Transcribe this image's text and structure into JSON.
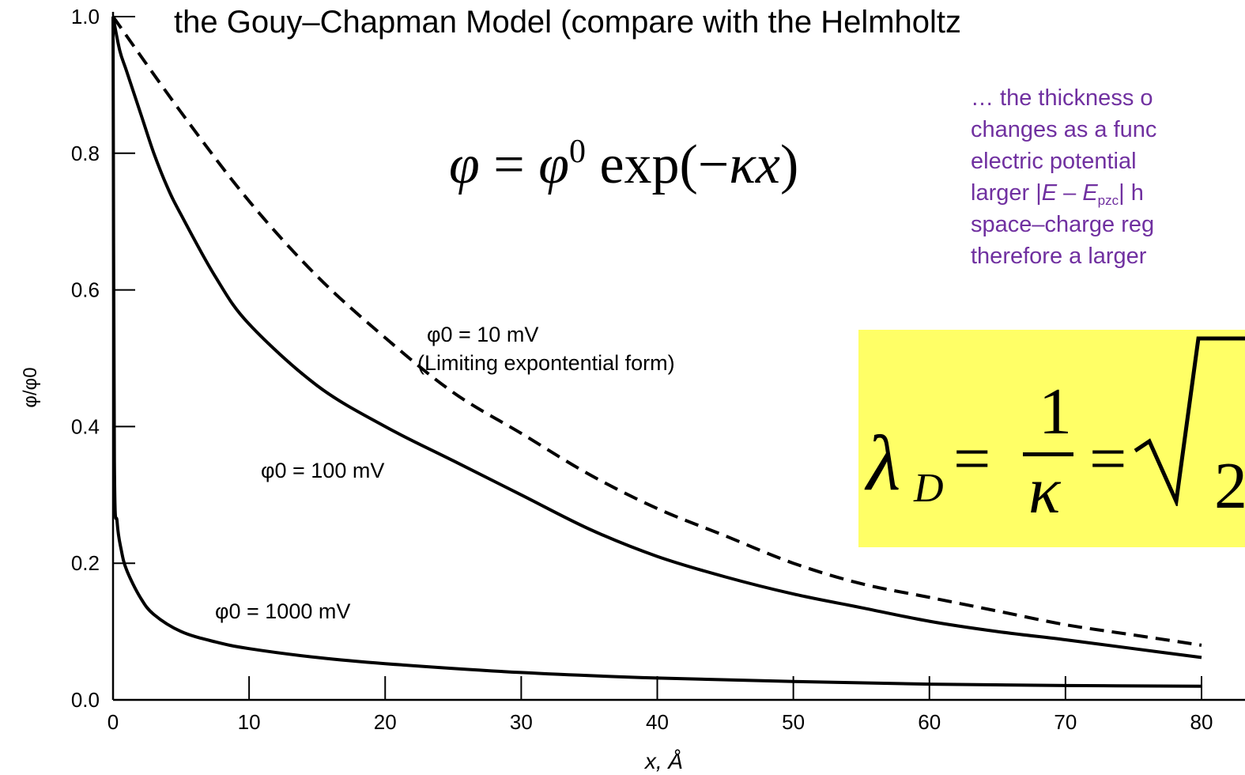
{
  "slide": {
    "title": "the Gouy–Chapman Model (compare with the Helmholtz",
    "equation": {
      "lhs": "φ",
      "equals": "=",
      "base": "φ",
      "superscript": "0",
      "func": "exp(−",
      "kappa": "κ",
      "x": "x",
      "close": ")"
    },
    "note": {
      "line1": "… the thickness o",
      "line2": "changes as a func",
      "line3": "electric potential",
      "line4_pre": "larger |",
      "line4_E": "E",
      "line4_dash": " – ",
      "line4_E2": "E",
      "line4_sub": "pzc",
      "line4_post": "| h",
      "line5": "space–charge reg",
      "line6": "therefore a larger",
      "color": "#7030a0"
    },
    "debye": {
      "lambda": "λ",
      "sub": "D",
      "eq1": "=",
      "numerator": "1",
      "kappa": "κ",
      "eq2": "=",
      "two": "2",
      "background": "#ffff66"
    }
  },
  "chart_data": {
    "type": "line",
    "xlabel": "x, Å",
    "ylabel": "φ/φ0",
    "xlim": [
      0,
      80
    ],
    "ylim": [
      0,
      1.0
    ],
    "xticks": [
      0,
      10,
      20,
      30,
      40,
      50,
      60,
      70,
      80
    ],
    "yticks": [
      0.0,
      0.2,
      0.4,
      0.6,
      0.8,
      1.0
    ],
    "xtick_labels": [
      "0",
      "10",
      "20",
      "30",
      "40",
      "50",
      "60",
      "70",
      "80"
    ],
    "ytick_labels": [
      "0.0",
      "0.2",
      "0.4",
      "0.6",
      "0.8",
      "1.0"
    ],
    "grid": false,
    "series": [
      {
        "label_line1": "φ0 = 10 mV",
        "label_line2": "(Limiting expontential form)",
        "style": "dashed",
        "x": [
          0,
          5,
          10,
          15,
          20,
          25,
          30,
          35,
          40,
          45,
          50,
          55,
          60,
          65,
          70,
          75,
          80
        ],
        "y": [
          1.0,
          0.86,
          0.73,
          0.62,
          0.53,
          0.45,
          0.39,
          0.33,
          0.28,
          0.24,
          0.2,
          0.17,
          0.15,
          0.13,
          0.11,
          0.095,
          0.08
        ]
      },
      {
        "label": "φ0 = 100 mV",
        "style": "solid",
        "x": [
          0,
          0.5,
          1,
          2,
          3,
          4,
          5,
          7.5,
          10,
          15,
          20,
          25,
          30,
          35,
          40,
          45,
          50,
          55,
          60,
          65,
          70,
          75,
          80
        ],
        "y": [
          1.0,
          0.95,
          0.92,
          0.86,
          0.8,
          0.75,
          0.71,
          0.62,
          0.55,
          0.46,
          0.4,
          0.35,
          0.3,
          0.25,
          0.21,
          0.18,
          0.155,
          0.135,
          0.115,
          0.1,
          0.088,
          0.075,
          0.062
        ]
      },
      {
        "label": "φ0 = 1000 mV",
        "style": "solid",
        "x": [
          0,
          0.1,
          0.3,
          0.6,
          1,
          2,
          3,
          5,
          7.5,
          10,
          15,
          20,
          30,
          40,
          50,
          60,
          70,
          80
        ],
        "y": [
          1.0,
          0.35,
          0.26,
          0.22,
          0.19,
          0.15,
          0.125,
          0.1,
          0.085,
          0.075,
          0.062,
          0.053,
          0.04,
          0.032,
          0.027,
          0.023,
          0.021,
          0.02
        ]
      }
    ]
  }
}
